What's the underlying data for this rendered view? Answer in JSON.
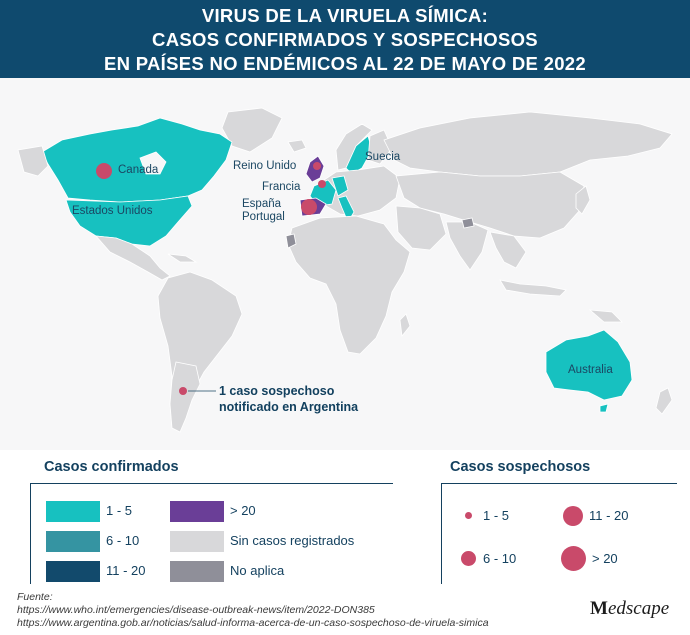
{
  "header": {
    "title_line_1": "VIRUS DE LA VIRUELA SÍMICA:",
    "title_line_2": "CASOS CONFIRMADOS Y SOSPECHOSOS",
    "title_line_3": "EN PAÍSES NO ENDÉMICOS AL 22 DE MAYO DE 2022"
  },
  "map": {
    "country_labels": {
      "canada": "Canada",
      "usa": "Estados Unidos",
      "uk": "Reino Unido",
      "sweden": "Suecia",
      "france": "Francia",
      "spain": "España",
      "portugal": "Portugal",
      "australia": "Australia"
    },
    "callout_line_1": "1 caso sospechoso",
    "callout_line_2": "notificado en Argentina"
  },
  "legend_confirmed": {
    "title": "Casos confirmados",
    "items": [
      {
        "label": "1 - 5",
        "color": "#17c1c0"
      },
      {
        "label": "6 - 10",
        "color": "#3594a2"
      },
      {
        "label": "11 - 20",
        "color": "#124a6c"
      },
      {
        "label": "> 20",
        "color": "#6a3e97"
      },
      {
        "label": "Sin casos registrados",
        "color": "#d8d8da"
      },
      {
        "label": "No aplica",
        "color": "#8f8f99"
      }
    ]
  },
  "legend_suspected": {
    "title": "Casos sospechosos",
    "items": [
      {
        "label": "1 - 5"
      },
      {
        "label": "11 - 20"
      },
      {
        "label": "6 - 10"
      },
      {
        "label": "> 20"
      }
    ],
    "dot_color": "#c94a6a"
  },
  "source": {
    "heading": "Fuente:",
    "line_1": "https://www.who.int/emergencies/disease-outbreak-news/item/2022-DON385",
    "line_2": "https://www.argentina.gob.ar/noticias/salud-informa-acerca-de-un-caso-sospechoso-de-viruela-simica"
  },
  "logo": {
    "part_1": "M",
    "part_2": "edscape"
  },
  "colors": {
    "header_bg": "#0f4a6e",
    "land": "#d8d8da",
    "confirmed_low": "#17c1c0",
    "confirmed_high": "#6a3e97",
    "suspected": "#c94a6a"
  }
}
